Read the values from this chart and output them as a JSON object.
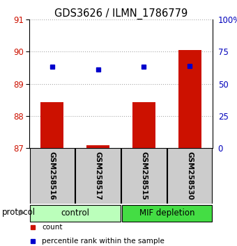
{
  "title": "GDS3626 / ILMN_1786779",
  "samples": [
    "GSM258516",
    "GSM258517",
    "GSM258515",
    "GSM258530"
  ],
  "bar_values": [
    88.42,
    87.08,
    88.42,
    90.05
  ],
  "bar_bottom": 87.0,
  "percentile_pct": [
    63,
    61,
    63,
    64
  ],
  "ylim_left": [
    87,
    91
  ],
  "ylim_right": [
    0,
    100
  ],
  "yticks_left": [
    87,
    88,
    89,
    90,
    91
  ],
  "yticks_right": [
    0,
    25,
    50,
    75,
    100
  ],
  "ytick_labels_right": [
    "0",
    "25",
    "50",
    "75",
    "100%"
  ],
  "bar_color": "#cc1100",
  "dot_color": "#0000cc",
  "group_control_color": "#bbffbb",
  "group_mif_color": "#44dd44",
  "protocol_label": "protocol",
  "legend_items": [
    {
      "color": "#cc1100",
      "label": "count"
    },
    {
      "color": "#0000cc",
      "label": "percentile rank within the sample"
    }
  ],
  "grid_color": "#aaaaaa",
  "tick_label_color_left": "#cc1100",
  "tick_label_color_right": "#0000bb",
  "bg_color": "#ffffff",
  "sample_box_color": "#cccccc"
}
